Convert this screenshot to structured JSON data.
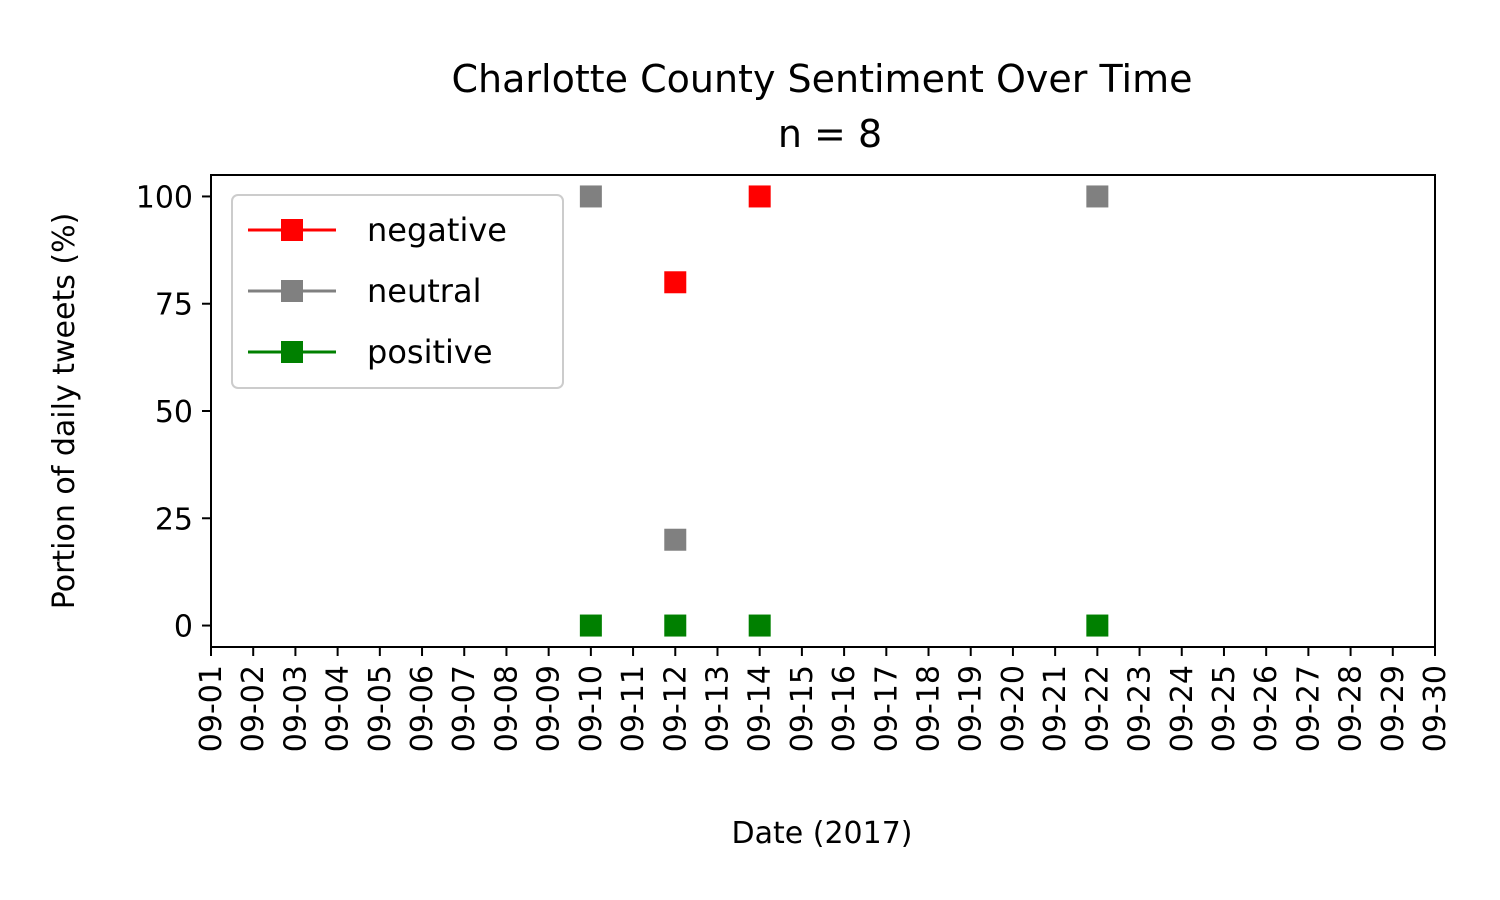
{
  "chart_data": {
    "type": "scatter",
    "title": "Charlotte County Sentiment Over Time",
    "subtitle": "n = 8",
    "xlabel": "Date (2017)",
    "ylabel": "Portion of daily tweets (%)",
    "x_ticks": [
      "09-01",
      "09-02",
      "09-03",
      "09-04",
      "09-05",
      "09-06",
      "09-07",
      "09-08",
      "09-09",
      "09-10",
      "09-11",
      "09-12",
      "09-13",
      "09-14",
      "09-15",
      "09-16",
      "09-17",
      "09-18",
      "09-19",
      "09-20",
      "09-21",
      "09-22",
      "09-23",
      "09-24",
      "09-25",
      "09-26",
      "09-27",
      "09-28",
      "09-29",
      "09-30"
    ],
    "xlim": [
      "09-01",
      "09-30"
    ],
    "y_ticks": [
      0,
      25,
      50,
      75,
      100
    ],
    "ylim": [
      -5,
      105
    ],
    "grid": false,
    "legend_position": "upper-left",
    "series": [
      {
        "name": "negative",
        "color": "#ff0000",
        "marker": "square",
        "points": [
          {
            "x": "09-12",
            "y": 80
          },
          {
            "x": "09-14",
            "y": 100
          }
        ]
      },
      {
        "name": "neutral",
        "color": "#808080",
        "marker": "square",
        "points": [
          {
            "x": "09-10",
            "y": 100
          },
          {
            "x": "09-12",
            "y": 20
          },
          {
            "x": "09-22",
            "y": 100
          }
        ]
      },
      {
        "name": "positive",
        "color": "#008000",
        "marker": "square",
        "points": [
          {
            "x": "09-10",
            "y": 0
          },
          {
            "x": "09-12",
            "y": 0
          },
          {
            "x": "09-14",
            "y": 0
          },
          {
            "x": "09-22",
            "y": 0
          }
        ]
      }
    ]
  }
}
